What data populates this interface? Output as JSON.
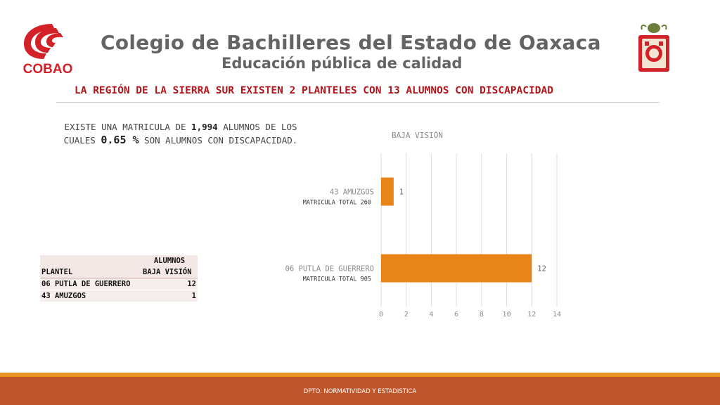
{
  "header": {
    "logo_text": "COBAO",
    "title": "Colegio de Bachilleres del Estado de Oaxaca",
    "subtitle": "Educación pública de calidad"
  },
  "headline": "LA REGIÓN DE LA SIERRA SUR EXISTEN 2 PLANTELES CON 13 ALUMNOS CON DISCAPACIDAD",
  "summary": {
    "p1": "EXISTE UNA MATRICULA DE ",
    "total": "1,994",
    "p2": "  ALUMNOS DE LOS CUALES ",
    "percent": "0.65 %",
    "p3": " SON ALUMNOS CON DISCAPACIDAD."
  },
  "table": {
    "header_top": "ALUMNOS",
    "col1": "PLANTEL",
    "col2": "BAJA VISIÓN",
    "rows": [
      {
        "plantel": "06 PUTLA DE GUERRERO",
        "value": "12"
      },
      {
        "plantel": "43 AMUZGOS",
        "value": "1"
      }
    ]
  },
  "chart_data": {
    "type": "bar",
    "orientation": "horizontal",
    "title": "BAJA VISIÓN",
    "categories": [
      "43 AMUZGOS",
      "06 PUTLA DE GUERRERO"
    ],
    "sublabels": [
      "MATRICULA TOTAL 260",
      "MATRICULA TOTAL 905"
    ],
    "values": [
      1,
      12
    ],
    "xlim": [
      0,
      14
    ],
    "ticks": [
      0,
      2,
      4,
      6,
      8,
      10,
      12,
      14
    ],
    "bar_color": "#e88418",
    "grid": true
  },
  "footer": {
    "text": "DPTO. NORMATIVIDAD Y ESTADISTICA"
  },
  "colors": {
    "logo_red": "#d42027",
    "headline_red": "#b0161c",
    "footer_orange": "#e99520",
    "footer_rust": "#c0562a"
  }
}
